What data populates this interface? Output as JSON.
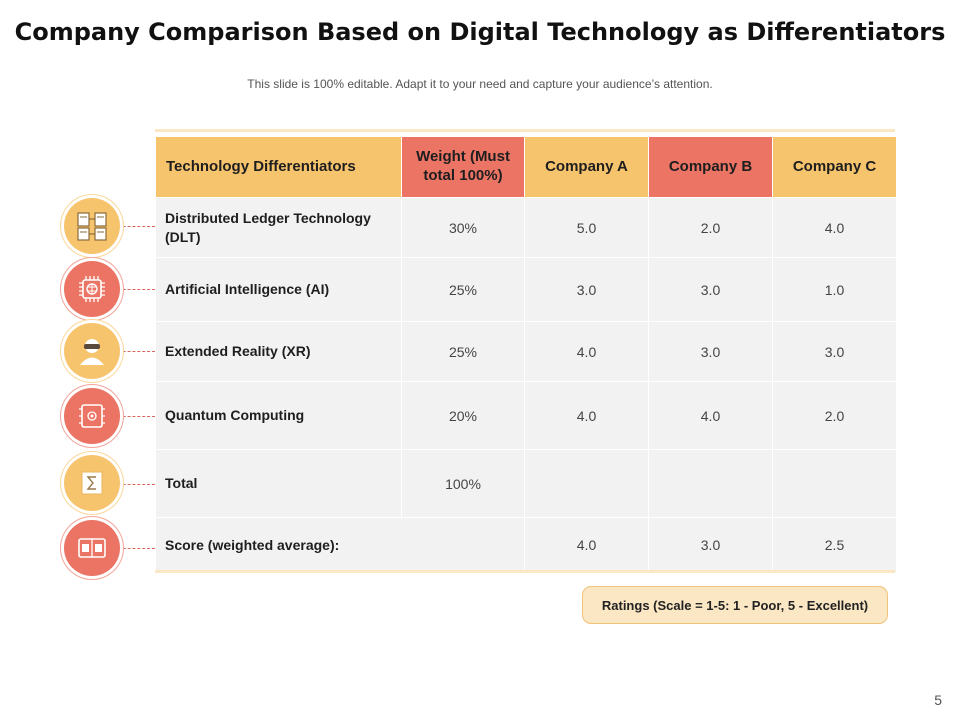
{
  "title": "Company Comparison Based on Digital Technology as Differentiators",
  "subtitle": "This slide is 100% editable. Adapt it to your need and capture your audience’s attention.",
  "table": {
    "headers": {
      "differentiators": "Technology Differentiators",
      "weight": "Weight (Must total 100%)",
      "company_a": "Company A",
      "company_b": "Company B",
      "company_c": "Company C"
    },
    "rows": [
      {
        "label": "Distributed Ledger Technology (DLT)",
        "weight": "30%",
        "a": "5.0",
        "b": "2.0",
        "c": "4.0"
      },
      {
        "label": "Artificial Intelligence (AI)",
        "weight": "25%",
        "a": "3.0",
        "b": "3.0",
        "c": "1.0"
      },
      {
        "label": "Extended Reality (XR)",
        "weight": "25%",
        "a": "4.0",
        "b": "3.0",
        "c": "3.0"
      },
      {
        "label": "Quantum Computing",
        "weight": "20%",
        "a": "4.0",
        "b": "4.0",
        "c": "2.0"
      }
    ],
    "total": {
      "label": "Total",
      "weight": "100%"
    },
    "score": {
      "label": "Score (weighted average):",
      "a": "4.0",
      "b": "3.0",
      "c": "2.5"
    }
  },
  "icons": [
    "ledger-icon",
    "ai-chip-icon",
    "vr-headset-icon",
    "quantum-chip-icon",
    "sigma-icon",
    "scoreboard-icon"
  ],
  "ratings_note": "Ratings (Scale = 1-5: 1 - Poor, 5 - Excellent)",
  "page_number": "5",
  "colors": {
    "yellow": "#f7c46e",
    "red": "#ec7465",
    "light": "#fbe7c4",
    "cell": "#f2f2f2"
  }
}
